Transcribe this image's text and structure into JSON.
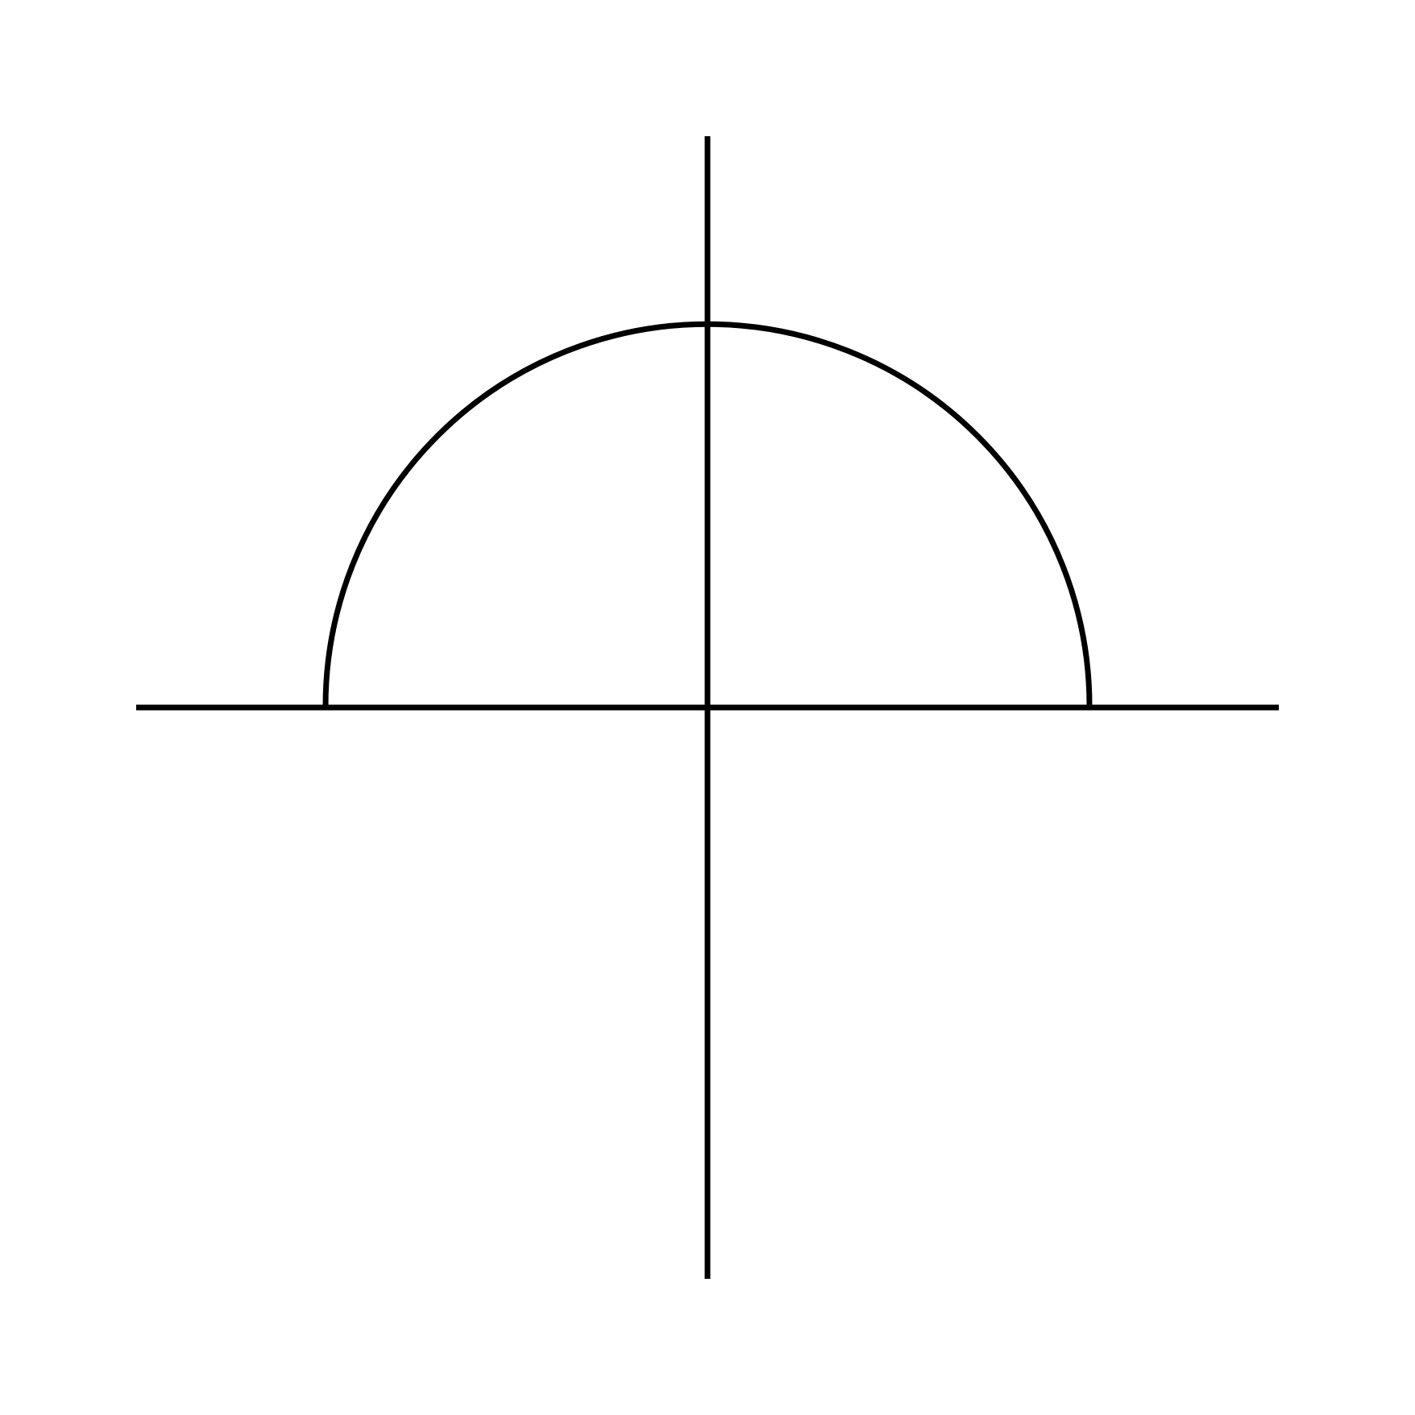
{
  "diagram": {
    "type": "axes-with-semicircle",
    "stroke_color": "#000000",
    "background_color": "#ffffff",
    "elements": [
      {
        "name": "horizontal-axis",
        "kind": "line"
      },
      {
        "name": "vertical-axis",
        "kind": "line"
      },
      {
        "name": "upper-semicircle",
        "kind": "arc",
        "opening": "downward",
        "centered_on": "origin"
      }
    ]
  }
}
